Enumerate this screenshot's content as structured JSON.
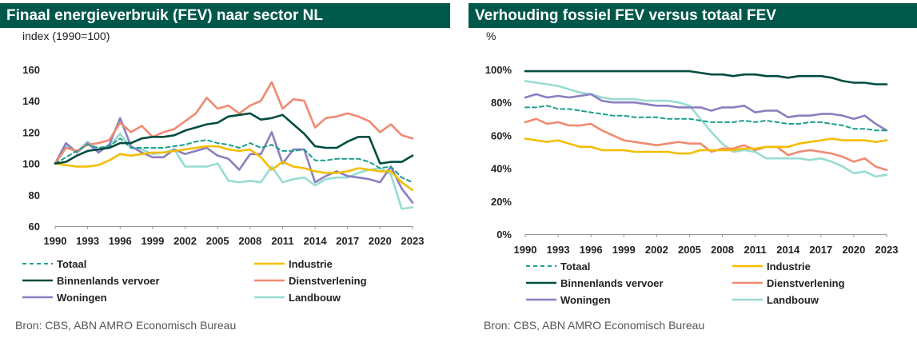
{
  "chart_data": [
    {
      "type": "line",
      "title": "Finaal energieverbruik (FEV) naar sector NL",
      "ylabel": "index (1990=100)",
      "ylim": [
        60,
        160
      ],
      "yticks": [
        "60",
        "80",
        "100",
        "120",
        "140",
        "160"
      ],
      "xlim": [
        1990,
        2023
      ],
      "xticks": [
        "1990",
        "1993",
        "1996",
        "1999",
        "2002",
        "2005",
        "2008",
        "2011",
        "2014",
        "2017",
        "2020",
        "2023"
      ],
      "grid": false,
      "legend": "bottom",
      "source": "Bron: CBS, ABN AMRO Economisch Bureau",
      "series": [
        {
          "name": "Totaal",
          "color": "#1d9e8e",
          "dash": true,
          "values": [
            100,
            104,
            108,
            112,
            110,
            111,
            116,
            110,
            110,
            110,
            110,
            111,
            112,
            114,
            115,
            113,
            112,
            110,
            113,
            110,
            112,
            108,
            108,
            109,
            102,
            102,
            103,
            103,
            103,
            101,
            97,
            98,
            91,
            88
          ]
        },
        {
          "name": "Industrie",
          "color": "#f3bd00",
          "dash": false,
          "values": [
            100,
            99,
            98,
            98,
            99,
            102,
            106,
            105,
            106,
            107,
            107,
            108,
            109,
            110,
            111,
            111,
            109,
            108,
            109,
            104,
            96,
            101,
            98,
            97,
            95,
            94,
            94,
            95,
            97,
            96,
            95,
            95,
            88,
            83
          ]
        },
        {
          "name": "Binnenlands vervoer",
          "color": "#004c3f",
          "dash": false,
          "values": [
            100,
            101,
            105,
            108,
            109,
            110,
            113,
            113,
            116,
            117,
            117,
            118,
            121,
            123,
            125,
            126,
            130,
            131,
            132,
            128,
            129,
            131,
            125,
            119,
            111,
            110,
            110,
            114,
            117,
            117,
            100,
            101,
            101,
            105
          ]
        },
        {
          "name": "Dienstverlening",
          "color": "#f08a71",
          "dash": false,
          "values": [
            100,
            110,
            108,
            112,
            113,
            115,
            126,
            120,
            124,
            117,
            120,
            122,
            127,
            132,
            142,
            135,
            137,
            132,
            137,
            140,
            152,
            135,
            141,
            140,
            123,
            129,
            130,
            132,
            130,
            127,
            120,
            125,
            118,
            116
          ]
        },
        {
          "name": "Woningen",
          "color": "#8c7ec0",
          "dash": false,
          "values": [
            100,
            113,
            107,
            113,
            107,
            112,
            129,
            111,
            107,
            104,
            104,
            109,
            106,
            108,
            110,
            105,
            103,
            96,
            106,
            106,
            120,
            100,
            109,
            109,
            88,
            92,
            95,
            92,
            91,
            90,
            88,
            98,
            84,
            75
          ]
        },
        {
          "name": "Landbouw",
          "color": "#97dcd2",
          "dash": false,
          "values": [
            100,
            111,
            107,
            114,
            108,
            111,
            119,
            110,
            109,
            106,
            107,
            109,
            98,
            98,
            98,
            100,
            89,
            88,
            89,
            88,
            98,
            88,
            90,
            91,
            86,
            90,
            91,
            91,
            94,
            96,
            97,
            93,
            71,
            72
          ]
        }
      ]
    },
    {
      "type": "line",
      "title": "Verhouding fossiel FEV versus totaal FEV",
      "ylabel": "%",
      "ylim": [
        0,
        100
      ],
      "yticks": [
        "0%",
        "20%",
        "40%",
        "60%",
        "80%",
        "100%"
      ],
      "xlim": [
        1990,
        2023
      ],
      "xticks": [
        "1990",
        "1993",
        "1996",
        "1999",
        "2002",
        "2005",
        "2008",
        "2011",
        "2014",
        "2017",
        "2020",
        "2023"
      ],
      "grid": false,
      "legend": "bottom",
      "source": "Bron: CBS,  ABN AMRO Economisch Bureau",
      "series": [
        {
          "name": "Totaal",
          "color": "#1d9e8e",
          "dash": true,
          "values": [
            77,
            77,
            78,
            76,
            76,
            75,
            74,
            73,
            72,
            72,
            71,
            71,
            71,
            70,
            70,
            70,
            69,
            68,
            68,
            68,
            69,
            68,
            69,
            68,
            67,
            67,
            68,
            68,
            67,
            66,
            64,
            64,
            63,
            63
          ]
        },
        {
          "name": "Industrie",
          "color": "#f3bd00",
          "dash": false,
          "values": [
            58,
            57,
            56,
            57,
            55,
            53,
            53,
            51,
            51,
            51,
            50,
            50,
            50,
            50,
            49,
            49,
            51,
            51,
            51,
            51,
            52,
            52,
            53,
            53,
            53,
            55,
            56,
            57,
            58,
            57,
            57,
            57,
            56,
            57
          ]
        },
        {
          "name": "Binnenlands vervoer",
          "color": "#004c3f",
          "dash": false,
          "values": [
            99,
            99,
            99,
            99,
            99,
            99,
            99,
            99,
            99,
            99,
            99,
            99,
            99,
            99,
            99,
            99,
            98,
            97,
            97,
            96,
            97,
            97,
            96,
            96,
            95,
            96,
            96,
            96,
            95,
            93,
            92,
            92,
            91,
            91
          ]
        },
        {
          "name": "Dienstverlening",
          "color": "#f08a71",
          "dash": false,
          "values": [
            68,
            70,
            67,
            68,
            66,
            66,
            67,
            63,
            60,
            57,
            56,
            55,
            54,
            55,
            56,
            55,
            55,
            50,
            52,
            52,
            54,
            51,
            53,
            53,
            48,
            50,
            51,
            50,
            49,
            47,
            44,
            46,
            41,
            39
          ]
        },
        {
          "name": "Woningen",
          "color": "#8c7ec0",
          "dash": false,
          "values": [
            83,
            85,
            83,
            84,
            83,
            84,
            85,
            81,
            80,
            80,
            80,
            79,
            78,
            78,
            77,
            77,
            77,
            75,
            77,
            77,
            78,
            74,
            75,
            75,
            71,
            72,
            72,
            73,
            73,
            72,
            70,
            72,
            67,
            63
          ]
        },
        {
          "name": "Landbouw",
          "color": "#97dcd2",
          "dash": false,
          "values": [
            93,
            92,
            91,
            90,
            88,
            86,
            85,
            83,
            82,
            82,
            82,
            81,
            81,
            81,
            80,
            78,
            70,
            62,
            55,
            50,
            51,
            50,
            46,
            46,
            46,
            46,
            45,
            46,
            44,
            41,
            37,
            38,
            35,
            36
          ]
        }
      ]
    }
  ]
}
